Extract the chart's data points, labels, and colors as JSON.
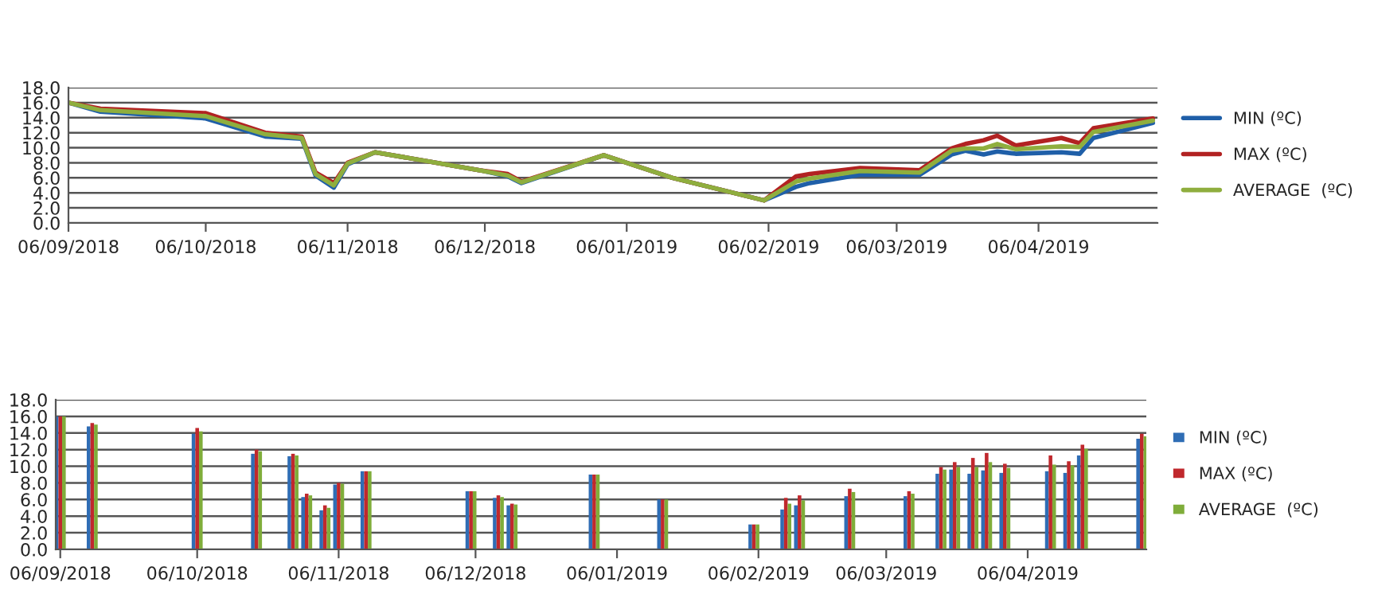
{
  "chart_data": [
    {
      "type": "line",
      "x": [
        "2018-09-06",
        "2018-09-13",
        "2018-10-06",
        "2018-10-19",
        "2018-10-27",
        "2018-10-30",
        "2018-11-03",
        "2018-11-06",
        "2018-11-12",
        "2018-12-05",
        "2018-12-11",
        "2018-12-14",
        "2019-01-01",
        "2019-01-16",
        "2019-02-05",
        "2019-02-12",
        "2019-02-15",
        "2019-02-26",
        "2019-03-11",
        "2019-03-18",
        "2019-03-21",
        "2019-03-25",
        "2019-03-28",
        "2019-04-01",
        "2019-04-11",
        "2019-04-15",
        "2019-04-18",
        "2019-05-01"
      ],
      "series": [
        {
          "name": "MIN (ºC)",
          "color": "#1f5fa8",
          "values": [
            16.0,
            14.8,
            13.9,
            11.5,
            11.2,
            6.3,
            4.7,
            7.8,
            9.4,
            7.0,
            6.2,
            5.3,
            9.0,
            6.0,
            3.0,
            4.8,
            5.3,
            6.4,
            6.4,
            9.1,
            9.6,
            9.1,
            9.5,
            9.2,
            9.4,
            9.2,
            11.3,
            13.3
          ]
        },
        {
          "name": "MAX (ºC)",
          "color": "#b22222",
          "values": [
            16.0,
            15.2,
            14.6,
            12.0,
            11.5,
            6.7,
            5.3,
            8.0,
            9.4,
            7.0,
            6.5,
            5.5,
            9.0,
            6.0,
            3.0,
            6.2,
            6.5,
            7.3,
            7.0,
            9.9,
            10.5,
            11.0,
            11.6,
            10.3,
            11.3,
            10.6,
            12.6,
            13.9
          ]
        },
        {
          "name": "AVERAGE  (ºC)",
          "color": "#8fae3e",
          "values": [
            16.0,
            15.0,
            14.2,
            11.8,
            11.3,
            6.5,
            5.0,
            7.9,
            9.4,
            7.0,
            6.3,
            5.4,
            9.0,
            6.0,
            3.0,
            5.5,
            5.9,
            6.9,
            6.7,
            9.6,
            9.9,
            9.9,
            10.5,
            9.8,
            10.2,
            10.1,
            12.1,
            13.6
          ]
        }
      ],
      "xlim": [
        "2018-09-06",
        "2019-05-02"
      ],
      "xticks": [
        {
          "value": "2018-09-06",
          "label": "06/09/2018"
        },
        {
          "value": "2018-10-06",
          "label": "06/10/2018"
        },
        {
          "value": "2018-11-06",
          "label": "06/11/2018"
        },
        {
          "value": "2018-12-06",
          "label": "06/12/2018"
        },
        {
          "value": "2019-01-06",
          "label": "06/01/2019"
        },
        {
          "value": "2019-02-06",
          "label": "06/02/2019"
        },
        {
          "value": "2019-03-06",
          "label": "06/03/2019"
        },
        {
          "value": "2019-04-06",
          "label": "06/04/2019"
        }
      ],
      "ylim": [
        0,
        18
      ],
      "yticks": [
        {
          "value": 0,
          "label": "0.0"
        },
        {
          "value": 2,
          "label": "2.0"
        },
        {
          "value": 4,
          "label": "4.0"
        },
        {
          "value": 6,
          "label": "6.0"
        },
        {
          "value": 8,
          "label": "8.0"
        },
        {
          "value": 10,
          "label": "10.0"
        },
        {
          "value": 12,
          "label": "12.0"
        },
        {
          "value": 14,
          "label": "14.0"
        },
        {
          "value": 16,
          "label": "16.0"
        },
        {
          "value": 18,
          "label": "18.0"
        }
      ],
      "grid": "y",
      "legend": "right",
      "marker": "none",
      "line_style": "solid"
    },
    {
      "type": "bar",
      "x": [
        "2018-09-06",
        "2018-09-13",
        "2018-10-06",
        "2018-10-19",
        "2018-10-27",
        "2018-10-30",
        "2018-11-03",
        "2018-11-06",
        "2018-11-12",
        "2018-12-05",
        "2018-12-11",
        "2018-12-14",
        "2019-01-01",
        "2019-01-16",
        "2019-02-05",
        "2019-02-12",
        "2019-02-15",
        "2019-02-26",
        "2019-03-11",
        "2019-03-18",
        "2019-03-21",
        "2019-03-25",
        "2019-03-28",
        "2019-04-01",
        "2019-04-11",
        "2019-04-15",
        "2019-04-18",
        "2019-05-01"
      ],
      "series": [
        {
          "name": "MIN (ºC)",
          "color": "#2f6db5",
          "values": [
            16.0,
            14.8,
            13.9,
            11.5,
            11.2,
            6.3,
            4.7,
            7.8,
            9.4,
            7.0,
            6.2,
            5.3,
            9.0,
            6.0,
            3.0,
            4.8,
            5.3,
            6.4,
            6.4,
            9.1,
            9.6,
            9.1,
            9.5,
            9.2,
            9.4,
            9.2,
            11.3,
            13.3
          ]
        },
        {
          "name": "MAX (ºC)",
          "color": "#c0282d",
          "values": [
            16.0,
            15.2,
            14.6,
            12.0,
            11.5,
            6.7,
            5.3,
            8.0,
            9.4,
            7.0,
            6.5,
            5.5,
            9.0,
            6.0,
            3.0,
            6.2,
            6.5,
            7.3,
            7.0,
            9.9,
            10.5,
            11.0,
            11.6,
            10.3,
            11.3,
            10.6,
            12.6,
            13.9
          ]
        },
        {
          "name": "AVERAGE  (ºC)",
          "color": "#7fad3a",
          "values": [
            16.0,
            15.0,
            14.2,
            11.8,
            11.3,
            6.5,
            5.0,
            7.9,
            9.4,
            7.0,
            6.3,
            5.4,
            9.0,
            6.0,
            3.0,
            5.5,
            5.9,
            6.9,
            6.7,
            9.6,
            9.9,
            9.9,
            10.5,
            9.8,
            10.2,
            10.1,
            12.1,
            13.6
          ]
        }
      ],
      "xticks": [
        {
          "value": "2018-09-06",
          "label": "06/09/2018"
        },
        {
          "value": "2018-10-06",
          "label": "06/10/2018"
        },
        {
          "value": "2018-11-06",
          "label": "06/11/2018"
        },
        {
          "value": "2018-12-06",
          "label": "06/12/2018"
        },
        {
          "value": "2019-01-06",
          "label": "06/01/2019"
        },
        {
          "value": "2019-02-06",
          "label": "06/02/2019"
        },
        {
          "value": "2019-03-06",
          "label": "06/03/2019"
        },
        {
          "value": "2019-04-06",
          "label": "06/04/2019"
        }
      ],
      "ylim": [
        0,
        18
      ],
      "yticks": [
        {
          "value": 0,
          "label": "0.0"
        },
        {
          "value": 2,
          "label": "2.0"
        },
        {
          "value": 4,
          "label": "4.0"
        },
        {
          "value": 6,
          "label": "6.0"
        },
        {
          "value": 8,
          "label": "8.0"
        },
        {
          "value": 10,
          "label": "10.0"
        },
        {
          "value": 12,
          "label": "12.0"
        },
        {
          "value": 14,
          "label": "14.0"
        },
        {
          "value": 16,
          "label": "16.0"
        },
        {
          "value": 18,
          "label": "18.0"
        }
      ],
      "grid": "y",
      "legend": "right",
      "xlim": [
        "2018-09-05",
        "2019-05-02"
      ]
    }
  ]
}
